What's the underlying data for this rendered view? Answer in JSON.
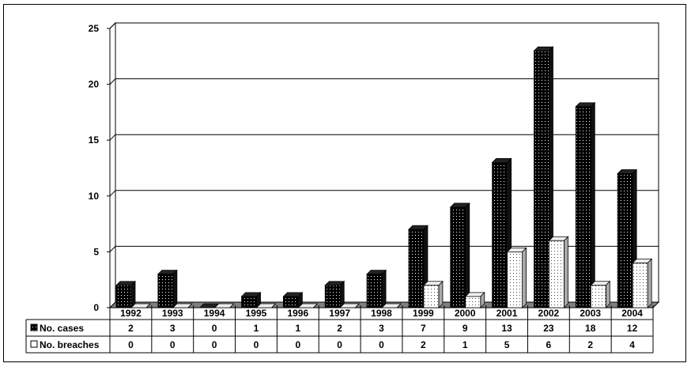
{
  "chart_data": {
    "type": "bar",
    "title": "",
    "xlabel": "",
    "ylabel": "",
    "ylim": [
      0,
      25
    ],
    "yticks": [
      0,
      5,
      10,
      15,
      20,
      25
    ],
    "grid": true,
    "style": "3d-bar-with-data-table",
    "legend_placement": "data-table-left",
    "categories": [
      "1992",
      "1993",
      "1994",
      "1995",
      "1996",
      "1997",
      "1998",
      "1999",
      "2000",
      "2001",
      "2002",
      "2003",
      "2004"
    ],
    "series": [
      {
        "name": "No. cases",
        "color": "#000000",
        "pattern": "dotted-dark",
        "values": [
          2,
          3,
          0,
          1,
          1,
          2,
          3,
          7,
          9,
          13,
          23,
          18,
          12
        ]
      },
      {
        "name": "No. breaches",
        "color": "#ffffff",
        "pattern": "dotted-light",
        "values": [
          0,
          0,
          0,
          0,
          0,
          0,
          0,
          2,
          1,
          5,
          6,
          2,
          4
        ]
      }
    ]
  }
}
